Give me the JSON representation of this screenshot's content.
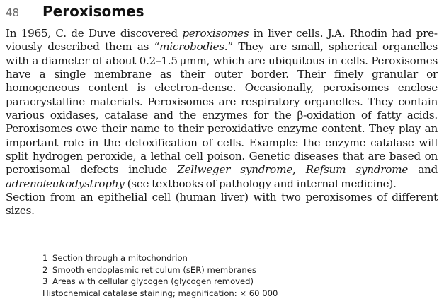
{
  "header": {
    "page_number": "48",
    "title": "Peroxisomes"
  },
  "paragraph_1": {
    "t1": "In 1965, C. de Duve discovered ",
    "t2": "peroxisomes",
    "t3": " in liver cells. J.A. Rhodin had pre­viously described them as “",
    "t4": "microbodies",
    "t5": ".” They are small, spherical organelles with a diameter of about 0.2–1.5 µmm, which are ubiquitous in cells. Peroxi­somes have a single membrane as their outer border. Their finely granular or homogeneous content is electron-dense. Occasionally, peroxisomes enclose paracrystalline materials. Peroxisomes are respiratory organelles. They con­tain various oxidases, catalase and the enzymes for the β-oxidation of fatty acids. Peroxisomes owe their name to their peroxidative enzyme content. They play an important role in the detoxification of cells. Example: the enzyme catalase will split hydrogen peroxide, a lethal cell poison. Genetic diseases that are based on peroxisomal defects include ",
    "t6": "Zellweger syndrome",
    "t7": ", ",
    "t8": "Refsum syndrome",
    "t9": " and ",
    "t10": "adrenoleukodystrophy",
    "t11": " (see textbooks of pathology and internal medicine)."
  },
  "paragraph_2": "Section from an epithelial cell (human liver) with two peroxisomes of differ­ent sizes.",
  "legend": {
    "items": [
      {
        "number": "1",
        "label": "Section through a mitochondrion"
      },
      {
        "number": "2",
        "label": "Smooth endoplasmic reticulum (sER) membranes"
      },
      {
        "number": "3",
        "label": "Areas with cellular glycogen (glycogen removed)"
      }
    ],
    "staining_note": "Histochemical catalase staining; magnification: × 60 000"
  }
}
